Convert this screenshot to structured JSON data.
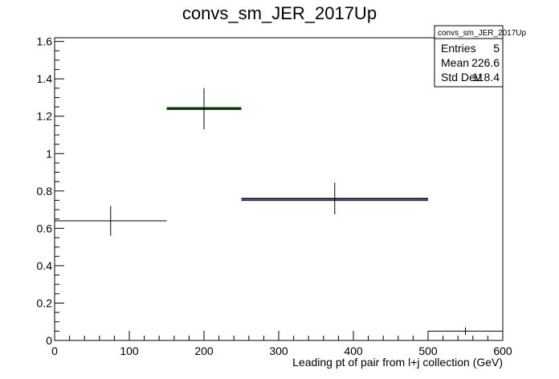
{
  "chart_data": {
    "type": "scatter",
    "title": "convs_sm_JER_2017Up",
    "xlabel": "Leading pt of pair from l+j collection (GeV)",
    "ylabel": "",
    "xlim": [
      0,
      600
    ],
    "ylim": [
      0,
      1.62
    ],
    "xticks": [
      "0",
      "100",
      "200",
      "300",
      "400",
      "500",
      "600"
    ],
    "yticks": [
      "0",
      "0.2",
      "0.4",
      "0.6",
      "0.8",
      "1",
      "1.2",
      "1.4",
      "1.6"
    ],
    "grid": false,
    "bins": [
      {
        "x_low": 0,
        "x_high": 150,
        "x": 75,
        "y": 0.64,
        "yerr": 0.08
      },
      {
        "x_low": 150,
        "x_high": 250,
        "x": 200,
        "y": 1.24,
        "yerr": 0.11
      },
      {
        "x_low": 250,
        "x_high": 500,
        "x": 375,
        "y": 0.76,
        "yerr": 0.085
      },
      {
        "x_low": 500,
        "x_high": 600,
        "x": 550,
        "y": 0.05,
        "yerr": 0.02
      }
    ],
    "overlay_lines": [
      {
        "color": "#008000",
        "x_low": 150,
        "x_high": 250,
        "y": 1.245
      },
      {
        "color": "#000080",
        "x_low": 250,
        "x_high": 500,
        "y": 0.758
      }
    ],
    "stats_box": {
      "title": "convs_sm_JER_2017Up",
      "rows": [
        {
          "label": "Entries",
          "value": "5"
        },
        {
          "label": "Mean",
          "value": "226.6"
        },
        {
          "label": "Std Dev",
          "value": "118.4"
        }
      ]
    }
  }
}
